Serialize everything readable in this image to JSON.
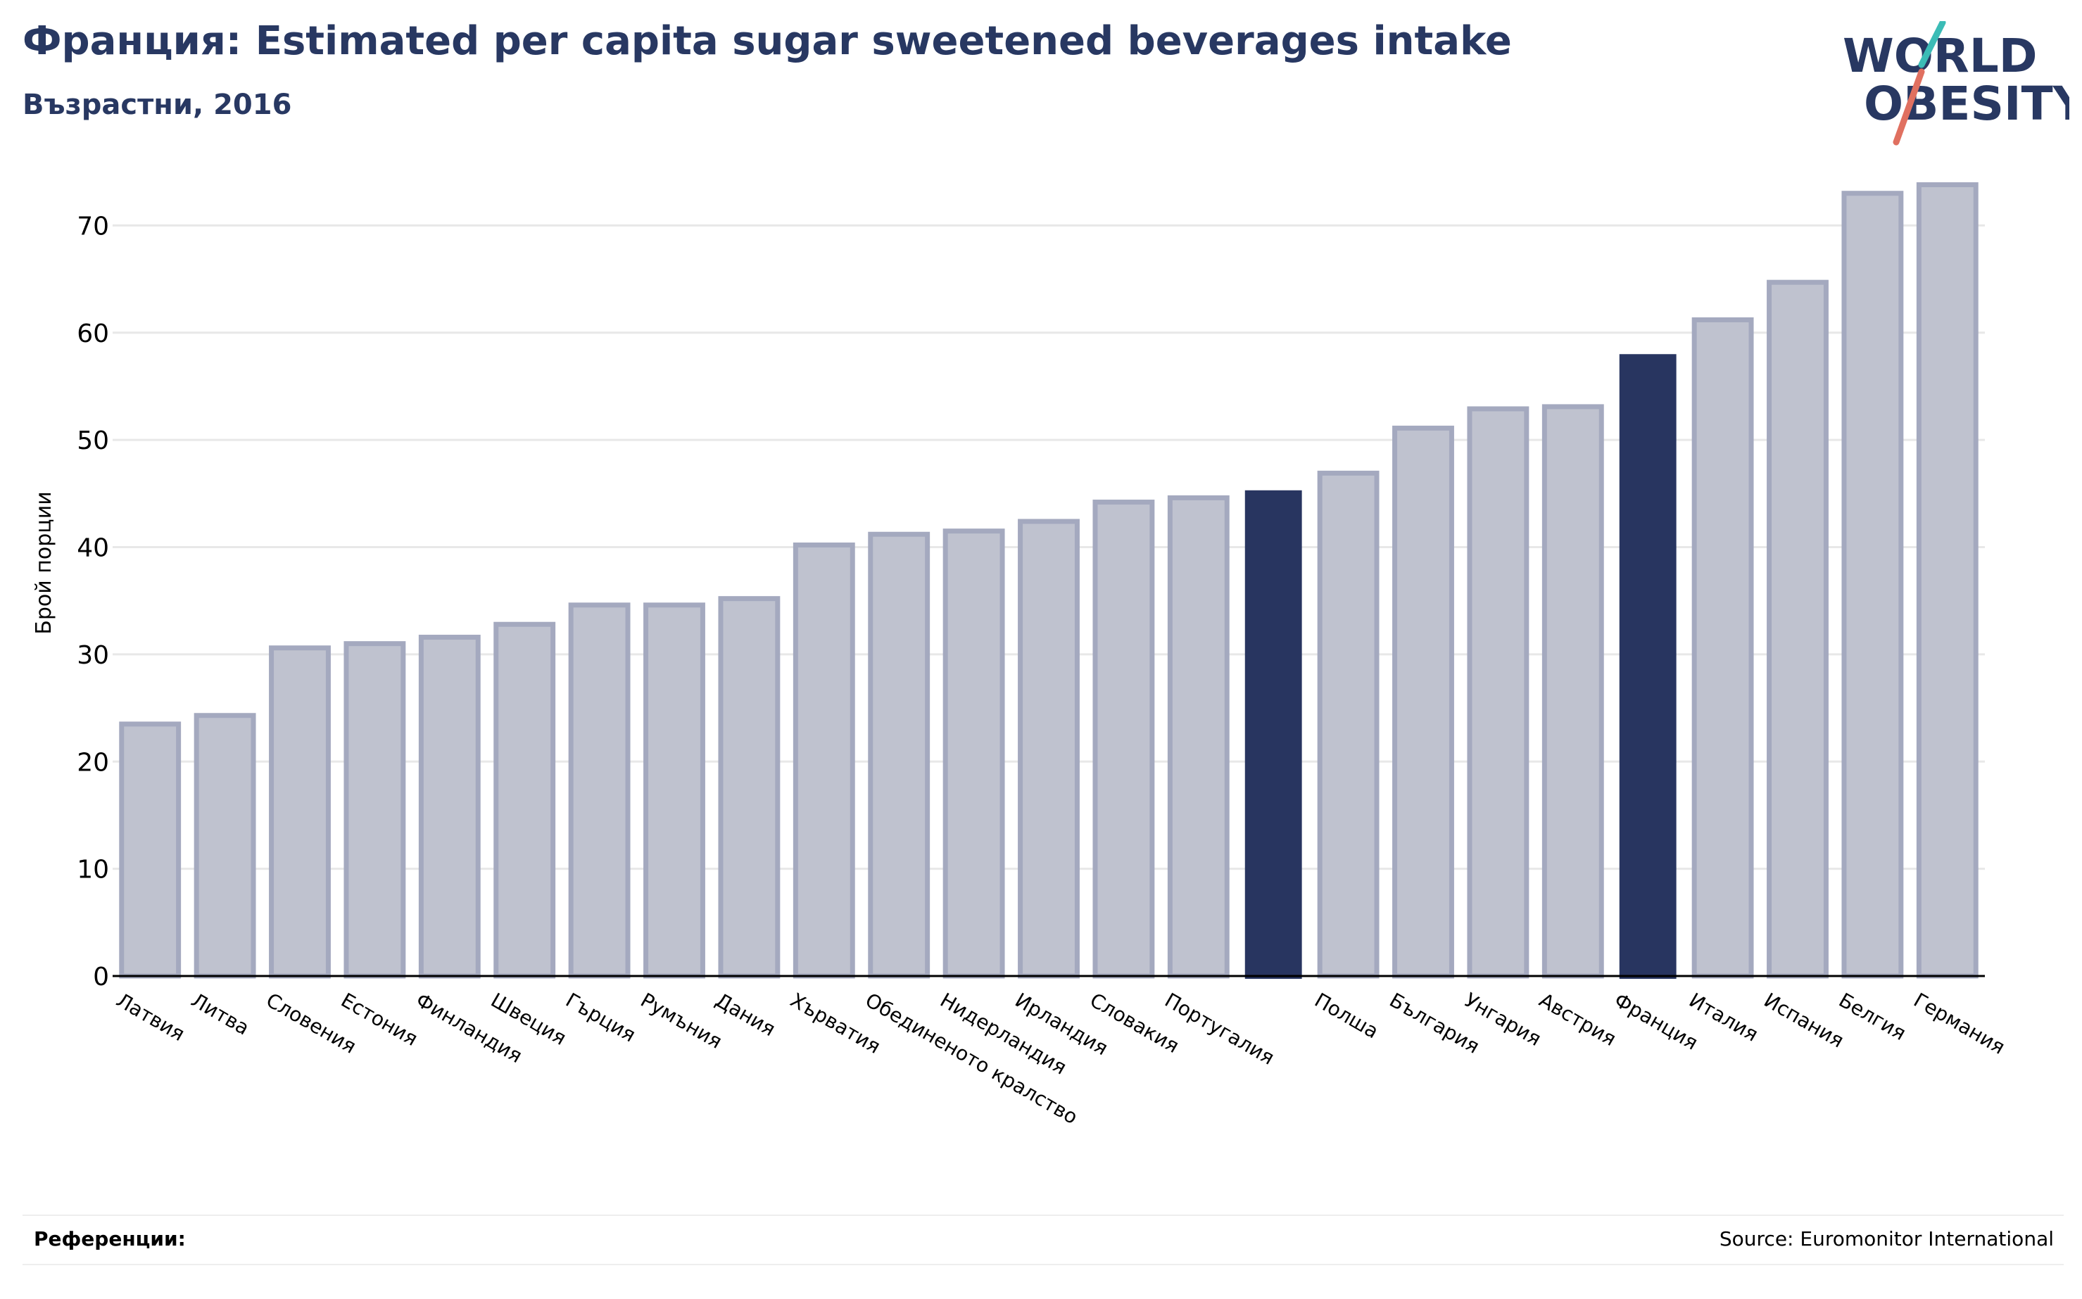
{
  "header": {
    "title": "Франция: Estimated per capita sugar sweetened beverages intake",
    "subtitle": "Възрастни, 2016"
  },
  "logo": {
    "line1": "WORLD",
    "line2": "OBESITY",
    "colors": {
      "text": "#283862",
      "slash_teal": "#3bbcb6",
      "slash_red": "#e07060"
    }
  },
  "footer": {
    "references_label": "Референции:",
    "source": "Source: Euromonitor International"
  },
  "colors": {
    "bar_default_fill": "#bfc2cf",
    "bar_default_stroke": "#a4a9bf",
    "bar_highlight": "#283560",
    "grid": "#e8e8e8",
    "axis": "#000000"
  },
  "chart_data": {
    "type": "bar",
    "title": "Франция: Estimated per capita sugar sweetened beverages intake",
    "subtitle": "Възрастни, 2016",
    "xlabel": "",
    "ylabel": "Брой порции",
    "ylim": [
      0,
      76
    ],
    "yticks": [
      0,
      10,
      20,
      30,
      40,
      50,
      60,
      70
    ],
    "grid": true,
    "categories": [
      "Латвия",
      "Литва",
      "Словения",
      "Естония",
      "Финландия",
      "Швеция",
      "Гърция",
      "Румъния",
      "Дания",
      "Хърватия",
      "Обединеното кралство",
      "Нидерландия",
      "Ирландия",
      "Словакия",
      "Португалия",
      "",
      "Полша",
      "България",
      "Унгария",
      "Австрия",
      "Франция",
      "Италия",
      "Испания",
      "Белгия",
      "Германия"
    ],
    "values": [
      23.5,
      24.3,
      30.6,
      31.0,
      31.6,
      32.8,
      34.6,
      34.6,
      35.2,
      40.2,
      41.2,
      41.5,
      42.4,
      44.2,
      44.6,
      45.3,
      46.9,
      51.1,
      52.9,
      53.1,
      58.0,
      61.2,
      64.7,
      73.0,
      73.8
    ],
    "highlighted": [
      false,
      false,
      false,
      false,
      false,
      false,
      false,
      false,
      false,
      false,
      false,
      false,
      false,
      false,
      false,
      true,
      false,
      false,
      false,
      false,
      true,
      false,
      false,
      false,
      false
    ]
  }
}
